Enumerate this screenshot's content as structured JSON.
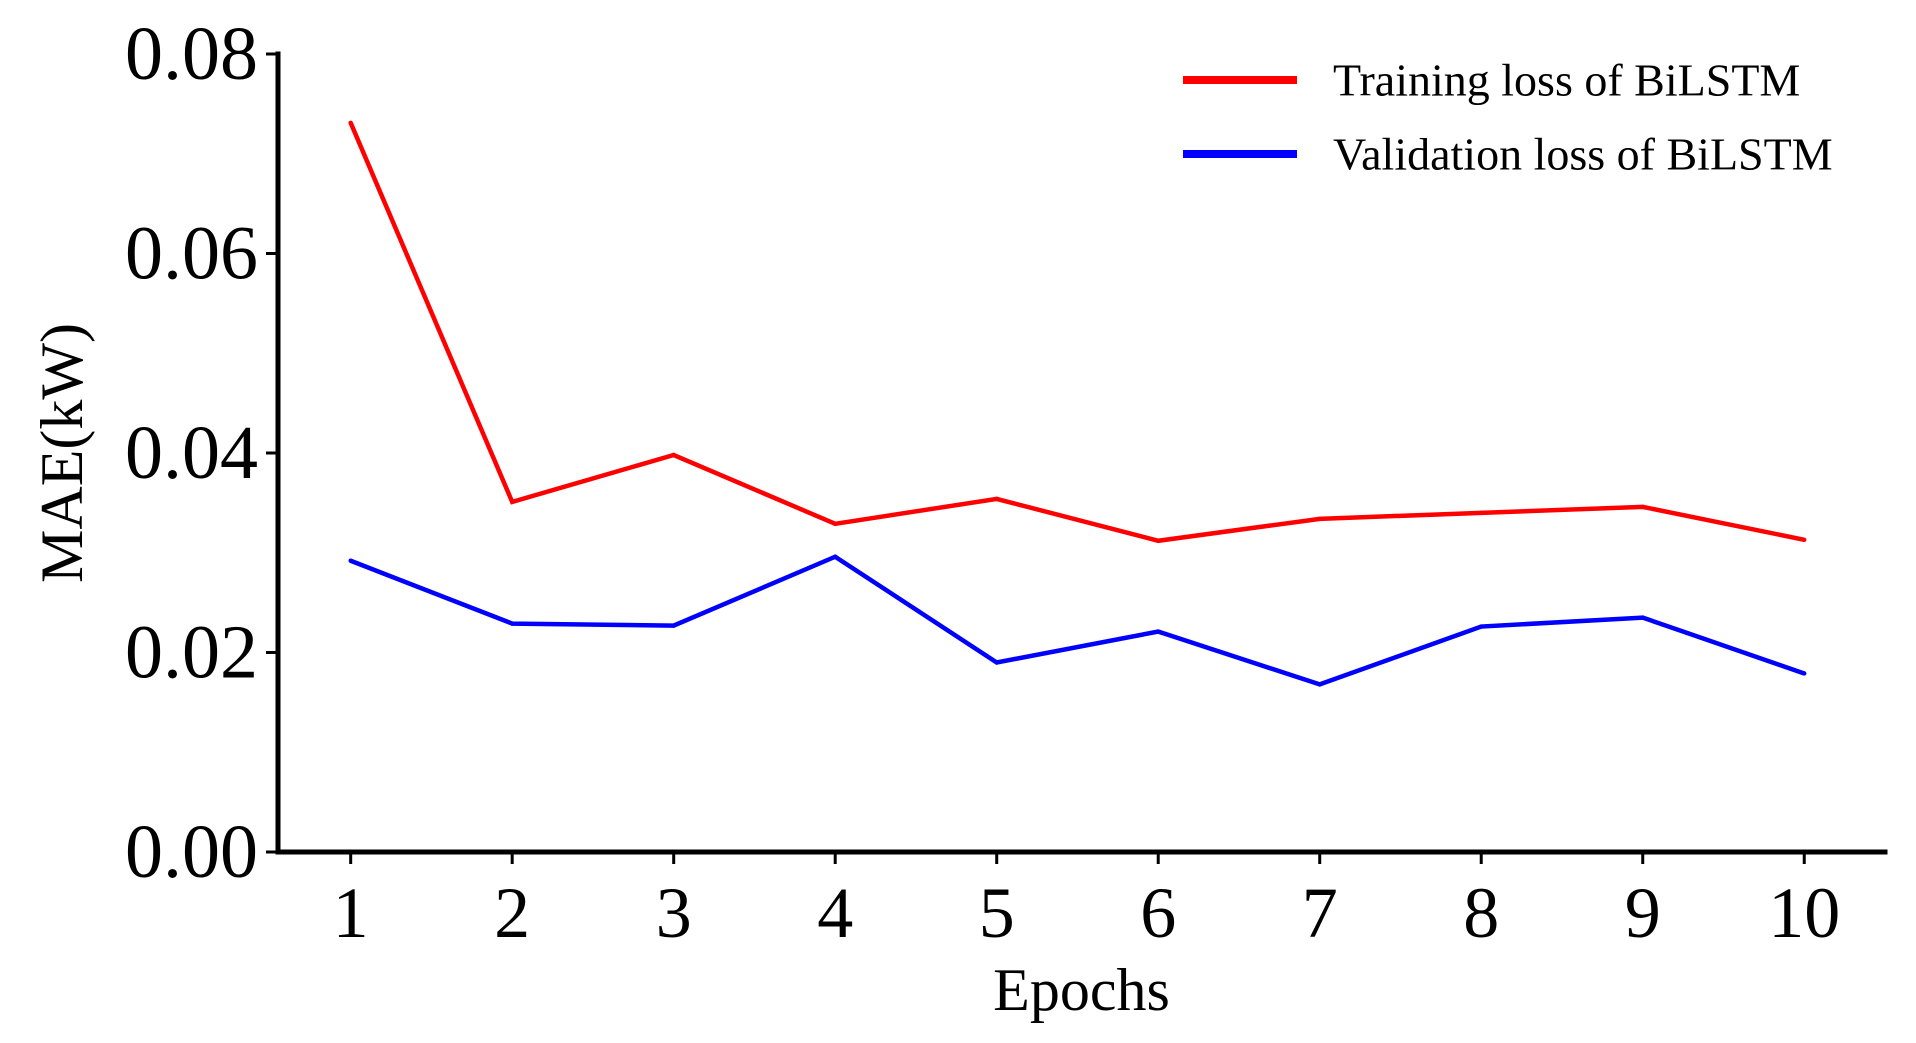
{
  "chart_data": {
    "type": "line",
    "title": "",
    "xlabel": "Epochs",
    "ylabel": "MAE(kW)",
    "x": [
      1,
      2,
      3,
      4,
      5,
      6,
      7,
      8,
      9,
      10
    ],
    "x_tick_labels": [
      "1",
      "2",
      "3",
      "4",
      "5",
      "6",
      "7",
      "8",
      "9",
      "10"
    ],
    "y_ticks": [
      0.0,
      0.02,
      0.04,
      0.06,
      0.08
    ],
    "y_tick_labels": [
      "0.00",
      "0.02",
      "0.04",
      "0.06",
      "0.08"
    ],
    "xlim": [
      0.55,
      10.5
    ],
    "ylim": [
      0,
      0.08
    ],
    "grid": false,
    "legend_position": "top-right",
    "series": [
      {
        "name": "Training loss of BiLSTM",
        "color": "#ff0000",
        "values": [
          0.0731,
          0.0351,
          0.0398,
          0.0329,
          0.0354,
          0.0312,
          0.0334,
          0.034,
          0.0346,
          0.0313
        ]
      },
      {
        "name": "Validation loss of BiLSTM",
        "color": "#0000ff",
        "values": [
          0.0292,
          0.0229,
          0.0227,
          0.0296,
          0.019,
          0.0221,
          0.0168,
          0.0226,
          0.0235,
          0.0179
        ]
      }
    ]
  }
}
